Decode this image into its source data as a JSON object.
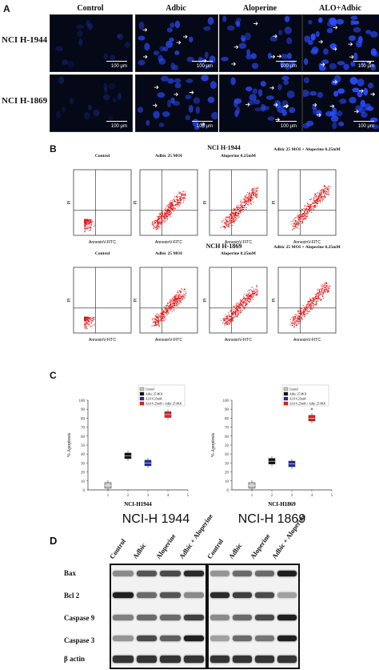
{
  "panel_a": {
    "label": "A",
    "columns": [
      "Control",
      "Adbic",
      "Aloperine",
      "ALO+Adbic"
    ],
    "rows": [
      "NCI H-1944",
      "NCI H-1869"
    ],
    "scale_text": "100 μm",
    "colors": {
      "background": "#050816",
      "nucleus": "#2a4dff",
      "arrow": "#ffffff"
    }
  },
  "panel_b": {
    "label": "B",
    "sets": [
      {
        "title": "NCI H-1944",
        "plots": [
          "Control",
          "Adbic 25 MOI",
          "Aloperine 0.25mM",
          "Adbic 25 MOI + Aloperine 0.25mM"
        ]
      },
      {
        "title": "NCH H-1869",
        "plots": [
          "Control",
          "Adbic 25 MOI",
          "Aloperine 0.25mM",
          "Adbic 25 MOI + Aloperine 0.25mM"
        ]
      }
    ],
    "x_axis": "AnnexinV-FITC",
    "y_axis": "PI",
    "dot_color": "#e01010"
  },
  "panel_c": {
    "label": "C",
    "legend": [
      "Control",
      "Adbic 25 MOI",
      "ALO 0.25mM",
      "ALO 0.25mM + Adbic 25 MOI"
    ]
  },
  "chart_data": [
    {
      "type": "scatter",
      "xlabel": "NCI-H1944",
      "ylabel": "% Apoptosis",
      "ylim": [
        0,
        100
      ],
      "xlim": [
        0,
        5
      ],
      "y_ticks": [
        0,
        10,
        20,
        30,
        40,
        50,
        60,
        70,
        80,
        90,
        100
      ],
      "x_ticks": [
        1,
        2,
        3,
        4,
        5
      ],
      "series": [
        {
          "name": "Control",
          "color": "#c8c8c8",
          "x": [
            1
          ],
          "y": [
            5
          ]
        },
        {
          "name": "Adbic 25 MOI",
          "color": "#111111",
          "x": [
            2
          ],
          "y": [
            38
          ]
        },
        {
          "name": "ALO 0.25mM",
          "color": "#1a2bb0",
          "x": [
            3
          ],
          "y": [
            30
          ]
        },
        {
          "name": "ALO 0.25mM + Adbic 25 MOI",
          "color": "#e02020",
          "x": [
            4
          ],
          "y": [
            84
          ]
        }
      ],
      "annotations": [
        "*"
      ]
    },
    {
      "type": "scatter",
      "xlabel": "NCI-H1869",
      "ylabel": "% Apoptosis",
      "ylim": [
        0,
        100
      ],
      "xlim": [
        0,
        5
      ],
      "y_ticks": [
        0,
        10,
        20,
        30,
        40,
        50,
        60,
        70,
        80,
        90,
        100
      ],
      "x_ticks": [
        1,
        2,
        3,
        4,
        5
      ],
      "series": [
        {
          "name": "Control",
          "color": "#c8c8c8",
          "x": [
            1
          ],
          "y": [
            5
          ]
        },
        {
          "name": "Adbic 25 MOI",
          "color": "#111111",
          "x": [
            2
          ],
          "y": [
            32
          ]
        },
        {
          "name": "ALO 0.25mM",
          "color": "#1a2bb0",
          "x": [
            3
          ],
          "y": [
            29
          ]
        },
        {
          "name": "ALO 0.25mM + Adbic 25 MOI",
          "color": "#e02020",
          "x": [
            4
          ],
          "y": [
            80
          ]
        }
      ],
      "annotations": [
        "*"
      ]
    }
  ],
  "panel_d": {
    "label": "D",
    "headers": [
      "NCI-H 1944",
      "NCI-H 1869"
    ],
    "lanes": [
      "Control",
      "Adbic",
      "Aloperine",
      "Adbic + Aloperine"
    ],
    "proteins": [
      "Bax",
      "Bcl 2",
      "Caspase 9",
      "Caspase 3",
      "β actin"
    ],
    "band_intensity": {
      "h1944": [
        [
          0.45,
          0.7,
          0.75,
          0.9
        ],
        [
          0.95,
          0.6,
          0.7,
          0.45
        ],
        [
          0.5,
          0.6,
          0.6,
          0.8
        ],
        [
          0.4,
          0.75,
          0.65,
          0.95
        ],
        [
          0.85,
          0.85,
          0.85,
          0.85
        ]
      ],
      "h1869": [
        [
          0.4,
          0.6,
          0.6,
          0.95
        ],
        [
          0.9,
          0.8,
          0.75,
          0.35
        ],
        [
          0.45,
          0.6,
          0.75,
          0.95
        ],
        [
          0.35,
          0.6,
          0.55,
          0.95
        ],
        [
          0.85,
          0.85,
          0.85,
          0.85
        ]
      ]
    }
  }
}
